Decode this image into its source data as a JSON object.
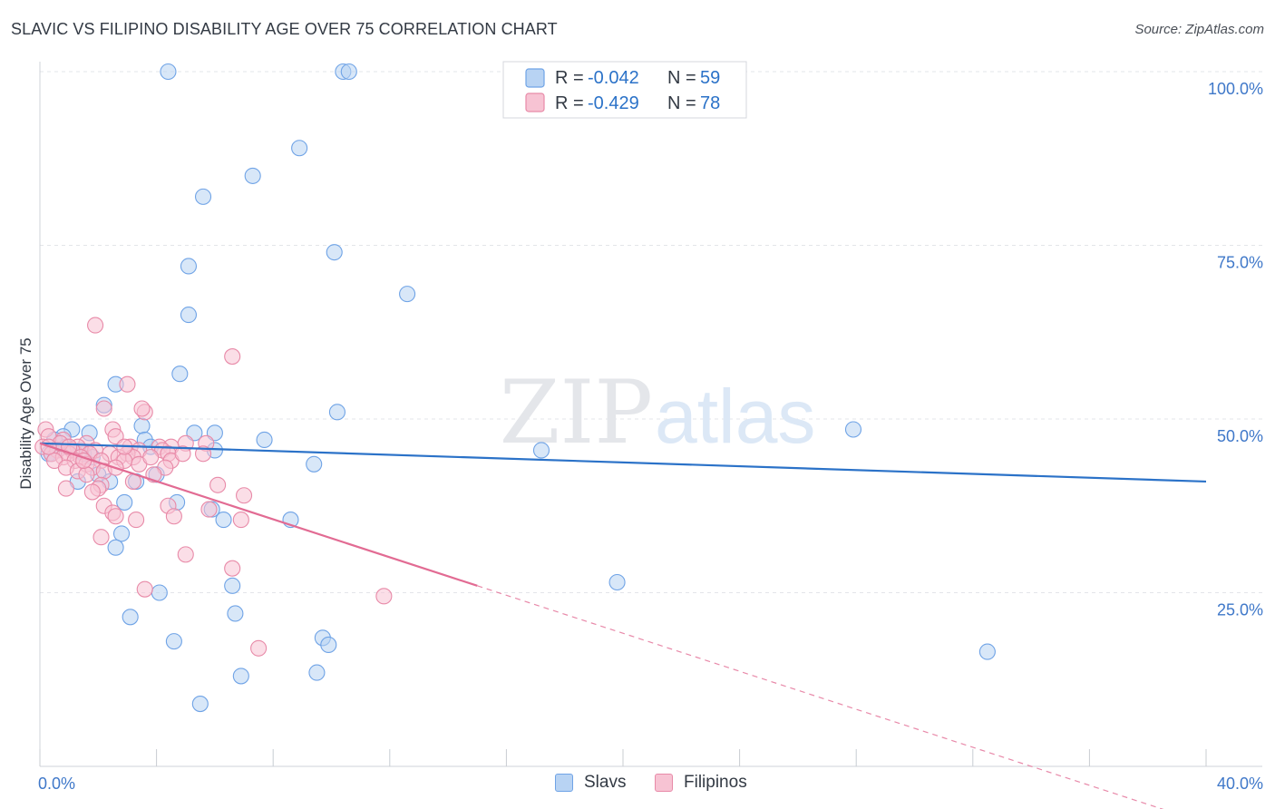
{
  "title": "SLAVIC VS FILIPINO DISABILITY AGE OVER 75 CORRELATION CHART",
  "source": "Source: ZipAtlas.com",
  "watermark": {
    "part1": "ZIP",
    "part2": "atlas"
  },
  "legend": {
    "rows": [
      {
        "r_label": "R =",
        "r_value": "-0.042",
        "n_label": "N =",
        "n_value": "59"
      },
      {
        "r_label": "R =",
        "r_value": "-0.429",
        "n_label": "N =",
        "n_value": "78"
      }
    ]
  },
  "chart_data": {
    "type": "scatter",
    "title": "SLAVIC VS FILIPINO DISABILITY AGE OVER 75 CORRELATION CHART",
    "xlabel": "",
    "ylabel": "Disability Age Over 75",
    "xlim": [
      0,
      40
    ],
    "ylim": [
      0,
      100
    ],
    "x_tick_labels": [
      {
        "value": 0,
        "label": "0.0%"
      },
      {
        "value": 40,
        "label": "40.0%"
      }
    ],
    "y_tick_labels": [
      {
        "value": 100,
        "label": "100.0%"
      },
      {
        "value": 75,
        "label": "75.0%"
      },
      {
        "value": 50,
        "label": "50.0%"
      },
      {
        "value": 25,
        "label": "25.0%"
      }
    ],
    "x_minor_ticks": [
      0,
      4,
      8,
      12,
      16,
      20,
      24,
      28,
      32,
      36,
      40
    ],
    "grid": true,
    "legend_position": "top-center",
    "series": [
      {
        "name": "Slavs",
        "color": "#6fa3e6",
        "fill": "#b8d3f3",
        "line_color": "#2b72c8",
        "R": -0.042,
        "N": 59,
        "trend": {
          "x0": 0,
          "y0": 46.5,
          "x1": 40,
          "y1": 41.0
        },
        "points": [
          [
            4.4,
            100
          ],
          [
            10.4,
            100
          ],
          [
            10.6,
            100
          ],
          [
            8.9,
            89
          ],
          [
            7.3,
            85
          ],
          [
            5.6,
            82
          ],
          [
            10.1,
            74
          ],
          [
            5.1,
            72
          ],
          [
            12.6,
            68
          ],
          [
            5.1,
            65
          ],
          [
            4.8,
            56.5
          ],
          [
            2.6,
            55
          ],
          [
            2.2,
            52
          ],
          [
            10.2,
            51
          ],
          [
            3.5,
            49
          ],
          [
            27.9,
            48.5
          ],
          [
            1.1,
            48.5
          ],
          [
            1.7,
            48
          ],
          [
            5.3,
            48
          ],
          [
            6.0,
            48
          ],
          [
            0.8,
            47.5
          ],
          [
            0.5,
            47
          ],
          [
            3.6,
            47
          ],
          [
            7.7,
            47
          ],
          [
            0.9,
            46
          ],
          [
            3.8,
            46
          ],
          [
            6.0,
            45.5
          ],
          [
            17.2,
            45.5
          ],
          [
            0.3,
            45
          ],
          [
            1.5,
            45
          ],
          [
            0.6,
            45.5
          ],
          [
            1.8,
            44.5
          ],
          [
            9.4,
            43.5
          ],
          [
            4.0,
            42
          ],
          [
            2.0,
            42
          ],
          [
            1.3,
            41
          ],
          [
            3.3,
            41
          ],
          [
            2.4,
            41
          ],
          [
            2.9,
            38
          ],
          [
            4.7,
            38
          ],
          [
            5.9,
            37
          ],
          [
            6.3,
            35.5
          ],
          [
            8.6,
            35.5
          ],
          [
            2.8,
            33.5
          ],
          [
            2.6,
            31.5
          ],
          [
            19.8,
            26.5
          ],
          [
            6.6,
            26
          ],
          [
            4.1,
            25
          ],
          [
            6.7,
            22
          ],
          [
            3.1,
            21.5
          ],
          [
            9.7,
            18.5
          ],
          [
            9.9,
            17.5
          ],
          [
            4.6,
            18
          ],
          [
            32.5,
            16.5
          ],
          [
            6.9,
            13
          ],
          [
            9.5,
            13.5
          ],
          [
            5.5,
            9
          ],
          [
            0.4,
            45
          ],
          [
            1.4,
            45.5
          ]
        ]
      },
      {
        "name": "Filipinos",
        "color": "#e88aa8",
        "fill": "#f7c3d3",
        "line_color": "#e26b93",
        "R": -0.429,
        "N": 78,
        "trend": {
          "x0": 0,
          "y0": 46.5,
          "x1": 15,
          "y1": 26.0
        },
        "trend_dashed": {
          "x0": 15,
          "y0": 26.0,
          "x1": 40,
          "y1": -8.2
        },
        "points": [
          [
            1.9,
            63.5
          ],
          [
            6.6,
            59
          ],
          [
            3.0,
            55
          ],
          [
            2.2,
            51.5
          ],
          [
            3.6,
            51
          ],
          [
            3.5,
            51.5
          ],
          [
            0.2,
            48.5
          ],
          [
            2.5,
            48.5
          ],
          [
            2.6,
            47.5
          ],
          [
            0.3,
            47.5
          ],
          [
            0.8,
            47
          ],
          [
            1.6,
            46.5
          ],
          [
            5.0,
            46.5
          ],
          [
            5.7,
            46.5
          ],
          [
            0.1,
            46
          ],
          [
            1.3,
            46
          ],
          [
            3.1,
            46
          ],
          [
            4.1,
            46
          ],
          [
            4.5,
            46
          ],
          [
            0.6,
            45.5
          ],
          [
            1.1,
            45.5
          ],
          [
            1.9,
            45.5
          ],
          [
            3.4,
            45.5
          ],
          [
            4.2,
            45.5
          ],
          [
            0.4,
            45
          ],
          [
            1.0,
            45
          ],
          [
            1.7,
            45
          ],
          [
            2.4,
            45
          ],
          [
            3.0,
            45
          ],
          [
            4.4,
            45
          ],
          [
            5.6,
            45
          ],
          [
            0.8,
            44.5
          ],
          [
            1.4,
            44.5
          ],
          [
            2.7,
            44.5
          ],
          [
            3.2,
            44.5
          ],
          [
            0.5,
            44
          ],
          [
            1.2,
            44
          ],
          [
            2.1,
            44
          ],
          [
            2.9,
            44
          ],
          [
            4.5,
            44
          ],
          [
            1.6,
            43.5
          ],
          [
            3.4,
            43.5
          ],
          [
            0.9,
            43
          ],
          [
            1.8,
            43
          ],
          [
            4.3,
            43
          ],
          [
            1.3,
            42.5
          ],
          [
            2.2,
            42.5
          ],
          [
            3.9,
            42
          ],
          [
            1.6,
            42
          ],
          [
            3.2,
            41
          ],
          [
            2.1,
            40.5
          ],
          [
            6.1,
            40.5
          ],
          [
            0.9,
            40
          ],
          [
            2.0,
            40
          ],
          [
            1.8,
            39.5
          ],
          [
            7.0,
            39
          ],
          [
            2.2,
            37.5
          ],
          [
            4.4,
            37.5
          ],
          [
            5.8,
            37
          ],
          [
            2.5,
            36.5
          ],
          [
            4.6,
            36
          ],
          [
            2.6,
            36
          ],
          [
            3.3,
            35.5
          ],
          [
            6.9,
            35.5
          ],
          [
            2.1,
            33
          ],
          [
            5.0,
            30.5
          ],
          [
            6.6,
            28.5
          ],
          [
            3.6,
            25.5
          ],
          [
            11.8,
            24.5
          ],
          [
            7.5,
            17
          ],
          [
            0.7,
            46.5
          ],
          [
            1.5,
            44
          ],
          [
            2.9,
            46
          ],
          [
            4.9,
            45
          ],
          [
            0.3,
            46
          ],
          [
            2.6,
            43
          ],
          [
            3.8,
            44.5
          ],
          [
            1.0,
            46
          ]
        ]
      }
    ]
  }
}
